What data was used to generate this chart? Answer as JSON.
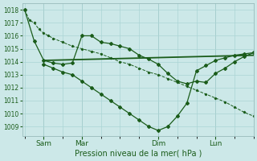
{
  "background_color": "#cce8e8",
  "grid_color": "#aad4d4",
  "line_color": "#1a5c1a",
  "xlabel": "Pression niveau de la mer( hPa )",
  "ylim": [
    1008.3,
    1018.5
  ],
  "yticks": [
    1009,
    1010,
    1011,
    1012,
    1013,
    1014,
    1015,
    1016,
    1017,
    1018
  ],
  "xtick_positions": [
    16,
    48,
    112,
    160
  ],
  "xtick_labels": [
    "Sam",
    "Mar",
    "Dim",
    "Lun"
  ],
  "xlim": [
    -2,
    192
  ],
  "s1x": [
    0,
    4,
    8,
    12,
    16,
    20,
    24,
    32,
    40,
    48,
    56,
    64,
    72,
    80,
    88,
    96,
    104,
    112,
    120,
    128,
    136,
    144,
    152,
    160,
    168,
    176,
    184,
    192
  ],
  "s1y": [
    1018.0,
    1017.2,
    1017.0,
    1016.5,
    1016.2,
    1016.0,
    1015.8,
    1015.5,
    1015.2,
    1015.0,
    1014.8,
    1014.6,
    1014.3,
    1014.0,
    1013.8,
    1013.5,
    1013.2,
    1013.0,
    1012.7,
    1012.4,
    1012.1,
    1011.8,
    1011.5,
    1011.2,
    1010.9,
    1010.5,
    1010.1,
    1009.8
  ],
  "s2x": [
    0,
    8,
    16,
    24,
    32,
    40,
    48,
    56,
    64,
    72,
    80,
    88,
    96,
    104,
    112,
    120,
    128,
    136,
    144,
    152,
    160,
    168,
    176,
    184,
    192
  ],
  "s2y": [
    1018.0,
    1015.6,
    1014.1,
    1013.9,
    1013.8,
    1013.9,
    1016.0,
    1016.0,
    1015.5,
    1015.4,
    1015.2,
    1015.0,
    1014.5,
    1014.2,
    1013.8,
    1013.1,
    1012.5,
    1012.3,
    1012.5,
    1012.4,
    1013.1,
    1013.5,
    1014.0,
    1014.4,
    1014.7
  ],
  "s3x": [
    16,
    192
  ],
  "s3y": [
    1014.1,
    1014.5
  ],
  "s4x": [
    16,
    24,
    32,
    40,
    48,
    56,
    64,
    72,
    80,
    88,
    96,
    104,
    112,
    120,
    128,
    136,
    144,
    152,
    160,
    168,
    176,
    184,
    192
  ],
  "s4y": [
    1013.8,
    1013.5,
    1013.2,
    1013.0,
    1012.5,
    1012.0,
    1011.5,
    1011.0,
    1010.5,
    1010.0,
    1009.5,
    1009.0,
    1008.7,
    1009.0,
    1009.8,
    1010.8,
    1013.3,
    1013.7,
    1014.1,
    1014.3,
    1014.5,
    1014.6,
    1014.7
  ]
}
